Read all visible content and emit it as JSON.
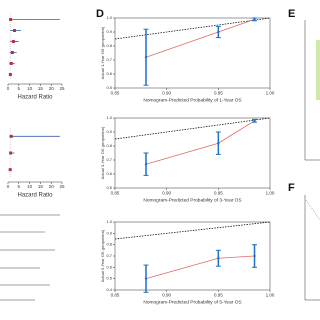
{
  "panels": {
    "d": "D",
    "e": "E",
    "f": "F"
  },
  "chart_data": [
    {
      "type": "forest",
      "xlabel": "Hazard Ratio",
      "xlim": [
        0,
        25
      ],
      "xticks": [
        0,
        5,
        10,
        15,
        20,
        25
      ],
      "values": [
        1.2,
        3,
        2.5,
        2,
        1.5,
        1.1
      ],
      "lower": [
        0.5,
        1,
        1,
        0.8,
        0.6,
        0.8
      ],
      "upper": [
        24,
        6,
        5,
        4,
        3,
        1.5
      ],
      "color": "#b0304f",
      "ci_color": "#3a5fa8"
    },
    {
      "type": "forest",
      "xlabel": "Hazard Ratio",
      "xlim": [
        0,
        25
      ],
      "xticks": [
        0,
        5,
        10,
        15,
        20,
        25
      ],
      "values": [
        1.5,
        1.2,
        1.0
      ],
      "lower": [
        0.6,
        0.7,
        0.6
      ],
      "upper": [
        24,
        3,
        1.8
      ],
      "color": "#b0304f",
      "ci_color": "#3a5fa8"
    },
    {
      "type": "calibration",
      "xlabel": "Nomogram-Predicted Probability of 1-Year OS",
      "ylabel": "Actual 1-Year OS (proportion)",
      "x": [
        0.88,
        0.95,
        0.985
      ],
      "values": [
        0.72,
        0.9,
        0.99
      ],
      "error": [
        0.2,
        0.04,
        0.01
      ],
      "xlim": [
        0.85,
        1.0
      ],
      "xticks": [
        0.85,
        {
          "value": 0.9,
          "label": "0.90"
        },
        0.95,
        {
          "value": 1,
          "label": "1.00"
        }
      ],
      "ylim": [
        0.5,
        1.0
      ],
      "yticks": [
        0.5,
        0.6,
        0.7,
        0.8,
        0.9,
        {
          "value": 1,
          "label": "1.0"
        }
      ],
      "color": "#e06a63",
      "bar_color": "#1f6fc5"
    },
    {
      "type": "calibration",
      "xlabel": "Nomogram-Predicted Probability of 3-Year OS",
      "ylabel": "Actual 3-Year OS (proportion)",
      "x": [
        0.88,
        0.95,
        0.985
      ],
      "values": [
        0.67,
        0.82,
        0.98
      ],
      "error": [
        0.08,
        0.08,
        0.01
      ],
      "xlim": [
        0.85,
        1.0
      ],
      "xticks": [
        0.85,
        {
          "value": 0.9,
          "label": "0.90"
        },
        0.95,
        {
          "value": 1,
          "label": "1.00"
        }
      ],
      "ylim": [
        0.5,
        1.0
      ],
      "yticks": [
        0.5,
        0.6,
        0.7,
        0.8,
        0.9,
        {
          "value": 1,
          "label": "1.0"
        }
      ],
      "color": "#e06a63",
      "bar_color": "#1f6fc5"
    },
    {
      "type": "calibration",
      "xlabel": "Nomogram-Predicted Probability of 5-Year OS",
      "ylabel": "Actual 5-Year OS (proportion)",
      "x": [
        0.88,
        0.95,
        0.985
      ],
      "values": [
        0.5,
        0.68,
        0.7
      ],
      "error": [
        0.12,
        0.07,
        0.1
      ],
      "xlim": [
        0.85,
        1.0
      ],
      "xticks": [
        0.85,
        {
          "value": 0.9,
          "label": "0.90"
        },
        0.95,
        {
          "value": 1,
          "label": "1.00"
        }
      ],
      "ylim": [
        0.4,
        1.0
      ],
      "yticks": [
        0.4,
        0.5,
        0.6,
        0.7,
        0.8,
        0.9,
        {
          "value": 1,
          "label": "1.0"
        }
      ],
      "color": "#e06a63",
      "bar_color": "#1f6fc5"
    }
  ]
}
